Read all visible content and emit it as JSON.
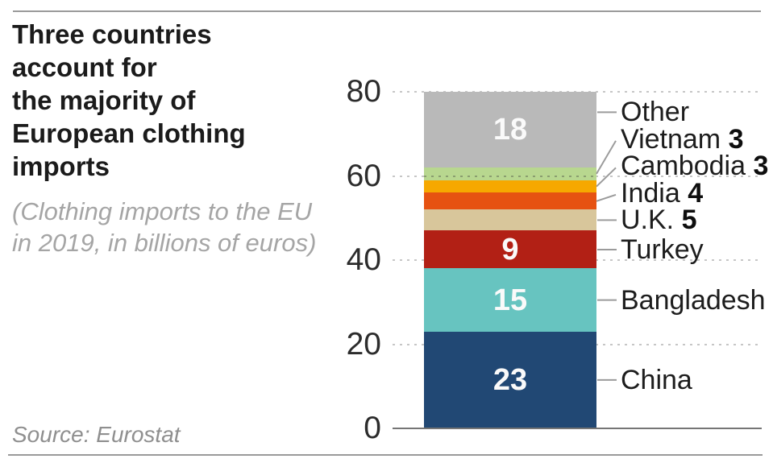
{
  "header": {
    "title": "Three countries account for the majority of European clothing imports",
    "title_lines": [
      "Three countries",
      "account for",
      "the majority of",
      "European clothing",
      "imports"
    ],
    "subtitle": "(Clothing imports to the EU in 2019, in billions of euros)",
    "subtitle_lines": [
      "(Clothing imports to the EU",
      "in 2019, in billions of euros)"
    ]
  },
  "footer": {
    "source": "Source: Eurostat"
  },
  "chart_data": {
    "type": "bar",
    "stacked": true,
    "title": "Three countries account for the majority of European clothing imports",
    "subtitle": "(Clothing imports to the EU in 2019, in billions of euros)",
    "source": "Source: Eurostat",
    "xlabel": "",
    "ylabel": "",
    "ylim": [
      0,
      80
    ],
    "yticks": [
      0,
      20,
      40,
      60,
      80
    ],
    "grid": "dotted-horizontal",
    "legend_position": "right-callouts",
    "categories": [
      "China",
      "Bangladesh",
      "Turkey",
      "U.K.",
      "India",
      "Cambodia",
      "Vietnam",
      "Other"
    ],
    "values": [
      23,
      15,
      9,
      5,
      4,
      3,
      3,
      18
    ],
    "segments_bottom_to_top": [
      {
        "label": "China",
        "value": 23,
        "color": "#214874",
        "value_inside": true,
        "value_in_label": false
      },
      {
        "label": "Bangladesh",
        "value": 15,
        "color": "#67c4c0",
        "value_inside": true,
        "value_in_label": false
      },
      {
        "label": "Turkey",
        "value": 9,
        "color": "#b22015",
        "value_inside": true,
        "value_in_label": false
      },
      {
        "label": "U.K.",
        "value": 5,
        "color": "#d8c69b",
        "value_inside": false,
        "value_in_label": true
      },
      {
        "label": "India",
        "value": 4,
        "color": "#e65211",
        "value_inside": false,
        "value_in_label": true
      },
      {
        "label": "Cambodia",
        "value": 3,
        "color": "#f6a800",
        "value_inside": false,
        "value_in_label": true
      },
      {
        "label": "Vietnam",
        "value": 3,
        "color": "#b8d78f",
        "value_inside": false,
        "value_in_label": true
      },
      {
        "label": "Other",
        "value": 18,
        "color": "#b9b9b9",
        "value_inside": true,
        "value_in_label": false
      }
    ],
    "colors": {
      "axis": "#757575",
      "gridline": "#c6c6c6",
      "leader_line": "#9b9b9b",
      "inside_value_text": "#fafafa",
      "label_text": "#1d1d1d",
      "tick_text": "#2c2c2c",
      "title_text": "#1b1b1b",
      "subtitle_text": "#a5a5a5",
      "source_text": "#8f8f8f"
    }
  }
}
